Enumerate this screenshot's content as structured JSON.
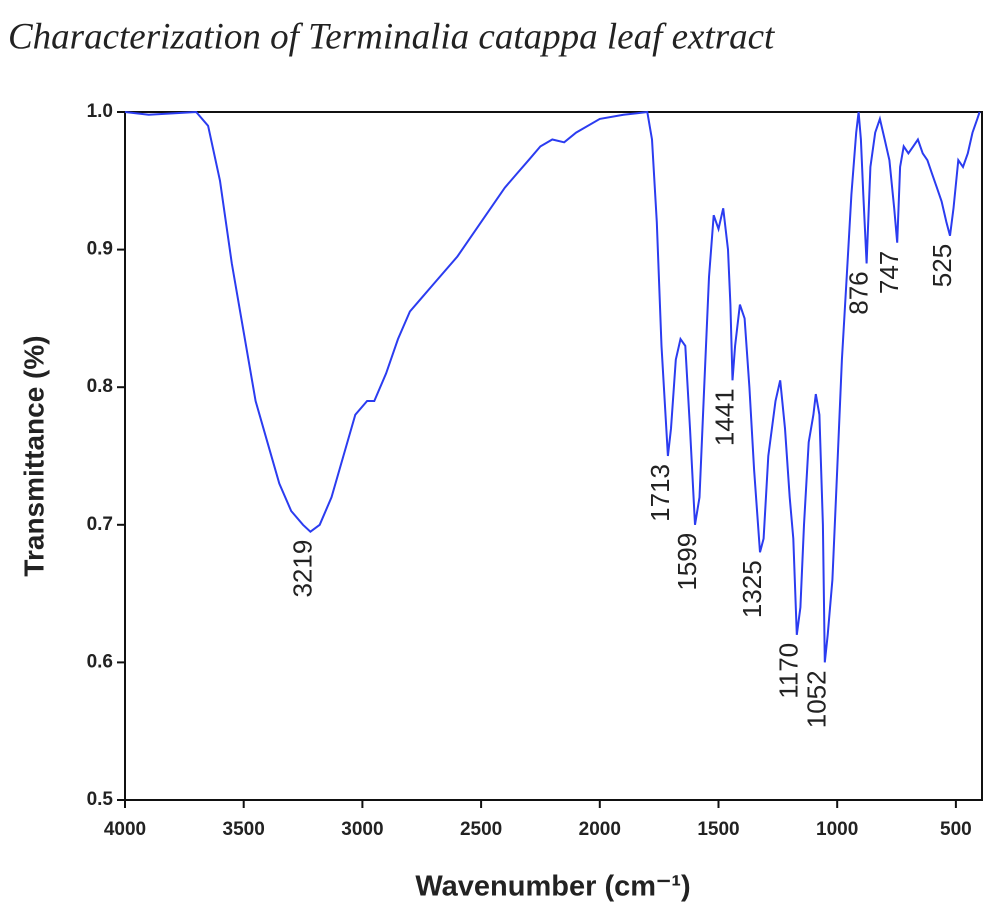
{
  "chart_data": {
    "type": "line",
    "title": "Characterization of Terminalia catappa leaf extract",
    "x_label": "Wavenumber (cm⁻¹)",
    "y_label": "Transmittance (%)",
    "xlim": [
      4000,
      390
    ],
    "ylim": [
      0.5,
      1.0
    ],
    "xticks": [
      4000,
      3500,
      3000,
      2500,
      2000,
      1500,
      1000,
      500
    ],
    "yticks": [
      0.5,
      0.6,
      0.7,
      0.8,
      0.9,
      {
        "value": 1.0,
        "label": "1.0"
      }
    ],
    "series": [
      {
        "color": "#2b3cf0",
        "x": [
          4000,
          3900,
          3800,
          3700,
          3650,
          3600,
          3550,
          3500,
          3450,
          3400,
          3350,
          3300,
          3250,
          3219,
          3180,
          3130,
          3080,
          3030,
          2980,
          2950,
          2900,
          2850,
          2800,
          2750,
          2700,
          2600,
          2500,
          2400,
          2350,
          2300,
          2250,
          2200,
          2150,
          2100,
          2000,
          1900,
          1800,
          1780,
          1760,
          1740,
          1730,
          1713,
          1700,
          1680,
          1660,
          1640,
          1620,
          1599,
          1580,
          1560,
          1540,
          1520,
          1500,
          1480,
          1460,
          1450,
          1441,
          1430,
          1410,
          1390,
          1370,
          1350,
          1325,
          1310,
          1290,
          1260,
          1240,
          1220,
          1200,
          1185,
          1170,
          1155,
          1140,
          1120,
          1100,
          1090,
          1075,
          1060,
          1052,
          1040,
          1020,
          1000,
          980,
          960,
          940,
          920,
          910,
          900,
          890,
          876,
          860,
          840,
          820,
          800,
          780,
          760,
          747,
          735,
          720,
          700,
          680,
          660,
          640,
          620,
          600,
          580,
          560,
          540,
          525,
          510,
          490,
          470,
          450,
          430,
          410,
          400
        ],
        "values": [
          1.0,
          0.998,
          0.999,
          1.0,
          0.99,
          0.95,
          0.89,
          0.84,
          0.79,
          0.76,
          0.73,
          0.71,
          0.7,
          0.695,
          0.7,
          0.72,
          0.75,
          0.78,
          0.79,
          0.79,
          0.81,
          0.835,
          0.855,
          0.865,
          0.875,
          0.895,
          0.92,
          0.945,
          0.955,
          0.965,
          0.975,
          0.98,
          0.978,
          0.985,
          0.995,
          0.998,
          1.0,
          0.98,
          0.92,
          0.83,
          0.8,
          0.75,
          0.77,
          0.82,
          0.835,
          0.83,
          0.77,
          0.7,
          0.72,
          0.8,
          0.88,
          0.925,
          0.915,
          0.93,
          0.9,
          0.86,
          0.805,
          0.83,
          0.86,
          0.85,
          0.8,
          0.74,
          0.68,
          0.69,
          0.75,
          0.79,
          0.805,
          0.77,
          0.72,
          0.69,
          0.62,
          0.64,
          0.7,
          0.76,
          0.78,
          0.795,
          0.78,
          0.7,
          0.6,
          0.62,
          0.66,
          0.74,
          0.82,
          0.88,
          0.94,
          0.985,
          1.0,
          0.98,
          0.94,
          0.89,
          0.96,
          0.985,
          0.995,
          0.98,
          0.965,
          0.93,
          0.905,
          0.96,
          0.975,
          0.97,
          0.975,
          0.98,
          0.97,
          0.965,
          0.955,
          0.945,
          0.935,
          0.92,
          0.91,
          0.93,
          0.965,
          0.96,
          0.97,
          0.985,
          0.995,
          1.0
        ]
      }
    ],
    "annotations": [
      {
        "text": "3219",
        "x": 3219,
        "y": 0.695
      },
      {
        "text": "1713",
        "x": 1713,
        "y": 0.75
      },
      {
        "text": "1599",
        "x": 1599,
        "y": 0.7
      },
      {
        "text": "1441",
        "x": 1441,
        "y": 0.805
      },
      {
        "text": "1325",
        "x": 1325,
        "y": 0.68
      },
      {
        "text": "1170",
        "x": 1170,
        "y": 0.62
      },
      {
        "text": "1052",
        "x": 1052,
        "y": 0.6
      },
      {
        "text": "876",
        "x": 876,
        "y": 0.89
      },
      {
        "text": "747",
        "x": 747,
        "y": 0.905
      },
      {
        "text": "525",
        "x": 525,
        "y": 0.91
      }
    ]
  }
}
